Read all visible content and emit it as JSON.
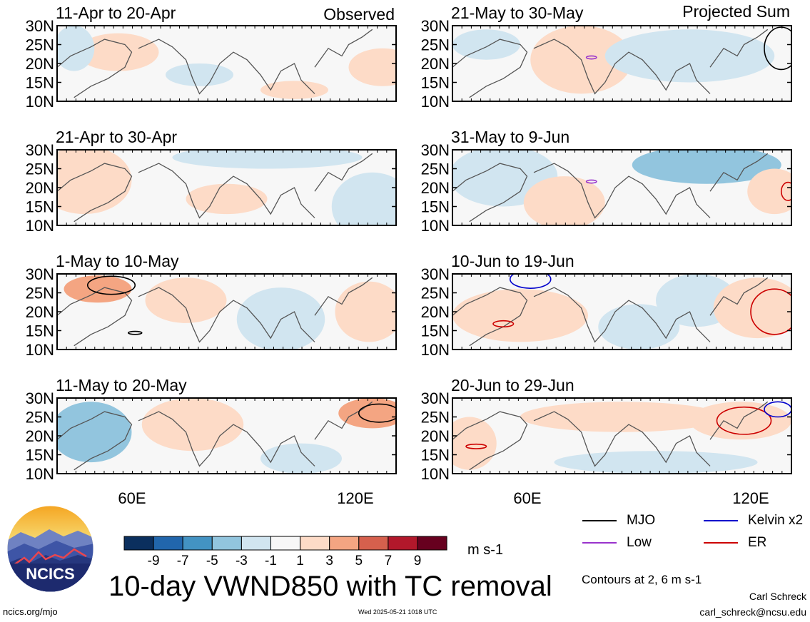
{
  "header": {
    "left_tag": "Observed",
    "right_tag": "Projected Sum"
  },
  "chart_data": {
    "type": "heatmap",
    "variable": "10-day VWND850 with TC removal",
    "units": "m s-1",
    "y_ticks": [
      "30N",
      "25N",
      "20N",
      "15N",
      "10N"
    ],
    "x_ticks": [
      "60E",
      "120E"
    ],
    "colorbar": {
      "labels": [
        "-9",
        "-7",
        "-5",
        "-3",
        "-1",
        "1",
        "3",
        "5",
        "7",
        "9"
      ],
      "colors": [
        "#0b2f5e",
        "#2166ac",
        "#4393c3",
        "#92c5de",
        "#d1e5f0",
        "#f7f7f7",
        "#fddbc7",
        "#f4a582",
        "#d6604d",
        "#b2182b",
        "#67001f"
      ]
    },
    "observed_panels": [
      {
        "title": "11-Apr to 20-Apr",
        "blobs": [
          {
            "x": 0.18,
            "y": 0.35,
            "rx": 0.12,
            "ry": 0.25,
            "c": "#fddbc7"
          },
          {
            "x": 0.42,
            "y": 0.65,
            "rx": 0.1,
            "ry": 0.15,
            "c": "#d1e5f0"
          },
          {
            "x": 0.7,
            "y": 0.85,
            "rx": 0.1,
            "ry": 0.12,
            "c": "#fddbc7"
          },
          {
            "x": 0.05,
            "y": 0.3,
            "rx": 0.06,
            "ry": 0.3,
            "c": "#d1e5f0"
          },
          {
            "x": 0.96,
            "y": 0.55,
            "rx": 0.1,
            "ry": 0.25,
            "c": "#fddbc7"
          }
        ],
        "contours": []
      },
      {
        "title": "21-Apr to 30-Apr",
        "blobs": [
          {
            "x": 0.08,
            "y": 0.4,
            "rx": 0.14,
            "ry": 0.45,
            "c": "#fddbc7"
          },
          {
            "x": 0.93,
            "y": 0.75,
            "rx": 0.12,
            "ry": 0.45,
            "c": "#d1e5f0"
          },
          {
            "x": 0.5,
            "y": 0.65,
            "rx": 0.12,
            "ry": 0.2,
            "c": "#fddbc7"
          },
          {
            "x": 0.62,
            "y": 0.1,
            "rx": 0.28,
            "ry": 0.15,
            "c": "#d1e5f0"
          }
        ],
        "contours": []
      },
      {
        "title": "1-May to 10-May",
        "blobs": [
          {
            "x": 0.12,
            "y": 0.2,
            "rx": 0.1,
            "ry": 0.18,
            "c": "#f4a582"
          },
          {
            "x": 0.38,
            "y": 0.35,
            "rx": 0.12,
            "ry": 0.3,
            "c": "#fddbc7"
          },
          {
            "x": 0.66,
            "y": 0.6,
            "rx": 0.13,
            "ry": 0.42,
            "c": "#d1e5f0"
          },
          {
            "x": 0.92,
            "y": 0.5,
            "rx": 0.1,
            "ry": 0.4,
            "c": "#fddbc7"
          }
        ],
        "contours": [
          {
            "x": 0.16,
            "y": 0.15,
            "rx": 0.07,
            "ry": 0.12,
            "c": "#000000"
          },
          {
            "x": 0.23,
            "y": 0.78,
            "rx": 0.02,
            "ry": 0.02,
            "c": "#000000"
          }
        ]
      },
      {
        "title": "11-May to 20-May",
        "blobs": [
          {
            "x": 0.1,
            "y": 0.45,
            "rx": 0.12,
            "ry": 0.4,
            "c": "#92c5de"
          },
          {
            "x": 0.4,
            "y": 0.35,
            "rx": 0.15,
            "ry": 0.35,
            "c": "#fddbc7"
          },
          {
            "x": 0.72,
            "y": 0.8,
            "rx": 0.12,
            "ry": 0.2,
            "c": "#d1e5f0"
          },
          {
            "x": 0.93,
            "y": 0.2,
            "rx": 0.1,
            "ry": 0.2,
            "c": "#f4a582"
          }
        ],
        "contours": [
          {
            "x": 0.95,
            "y": 0.2,
            "rx": 0.06,
            "ry": 0.12,
            "c": "#000000"
          }
        ]
      }
    ],
    "projected_panels": [
      {
        "title": "21-May to 30-May",
        "blobs": [
          {
            "x": 0.38,
            "y": 0.45,
            "rx": 0.15,
            "ry": 0.45,
            "c": "#fddbc7"
          },
          {
            "x": 0.1,
            "y": 0.25,
            "rx": 0.1,
            "ry": 0.2,
            "c": "#d1e5f0"
          },
          {
            "x": 0.7,
            "y": 0.4,
            "rx": 0.25,
            "ry": 0.35,
            "c": "#d1e5f0"
          }
        ],
        "contours": [
          {
            "x": 0.97,
            "y": 0.3,
            "rx": 0.05,
            "ry": 0.28,
            "c": "#000000"
          },
          {
            "x": 0.41,
            "y": 0.42,
            "rx": 0.015,
            "ry": 0.02,
            "c": "#9933cc"
          }
        ]
      },
      {
        "title": "31-May to 9-Jun",
        "blobs": [
          {
            "x": 0.15,
            "y": 0.35,
            "rx": 0.16,
            "ry": 0.4,
            "c": "#d1e5f0"
          },
          {
            "x": 0.33,
            "y": 0.7,
            "rx": 0.12,
            "ry": 0.35,
            "c": "#fddbc7"
          },
          {
            "x": 0.75,
            "y": 0.2,
            "rx": 0.22,
            "ry": 0.25,
            "c": "#92c5de"
          },
          {
            "x": 0.95,
            "y": 0.55,
            "rx": 0.08,
            "ry": 0.3,
            "c": "#fddbc7"
          }
        ],
        "contours": [
          {
            "x": 0.41,
            "y": 0.42,
            "rx": 0.015,
            "ry": 0.02,
            "c": "#9933cc"
          },
          {
            "x": 0.99,
            "y": 0.55,
            "rx": 0.02,
            "ry": 0.12,
            "c": "#cc0000"
          }
        ]
      },
      {
        "title": "10-Jun to 19-Jun",
        "blobs": [
          {
            "x": 0.2,
            "y": 0.55,
            "rx": 0.2,
            "ry": 0.35,
            "c": "#fddbc7"
          },
          {
            "x": 0.55,
            "y": 0.7,
            "rx": 0.12,
            "ry": 0.3,
            "c": "#d1e5f0"
          },
          {
            "x": 0.72,
            "y": 0.35,
            "rx": 0.12,
            "ry": 0.35,
            "c": "#d1e5f0"
          },
          {
            "x": 0.9,
            "y": 0.45,
            "rx": 0.13,
            "ry": 0.4,
            "c": "#fddbc7"
          }
        ],
        "contours": [
          {
            "x": 0.23,
            "y": 0.07,
            "rx": 0.06,
            "ry": 0.12,
            "c": "#0000cc"
          },
          {
            "x": 0.15,
            "y": 0.66,
            "rx": 0.03,
            "ry": 0.04,
            "c": "#cc0000"
          },
          {
            "x": 0.95,
            "y": 0.5,
            "rx": 0.07,
            "ry": 0.3,
            "c": "#cc0000"
          }
        ]
      },
      {
        "title": "20-Jun to 29-Jun",
        "blobs": [
          {
            "x": 0.05,
            "y": 0.6,
            "rx": 0.08,
            "ry": 0.35,
            "c": "#fddbc7"
          },
          {
            "x": 0.5,
            "y": 0.25,
            "rx": 0.3,
            "ry": 0.2,
            "c": "#fddbc7"
          },
          {
            "x": 0.6,
            "y": 0.85,
            "rx": 0.3,
            "ry": 0.15,
            "c": "#d1e5f0"
          },
          {
            "x": 0.85,
            "y": 0.3,
            "rx": 0.15,
            "ry": 0.25,
            "c": "#fddbc7"
          }
        ],
        "contours": [
          {
            "x": 0.86,
            "y": 0.3,
            "rx": 0.08,
            "ry": 0.18,
            "c": "#cc0000"
          },
          {
            "x": 0.96,
            "y": 0.15,
            "rx": 0.04,
            "ry": 0.1,
            "c": "#0000cc"
          },
          {
            "x": 0.07,
            "y": 0.64,
            "rx": 0.03,
            "ry": 0.03,
            "c": "#cc0000"
          }
        ]
      }
    ]
  },
  "legend": {
    "items": [
      {
        "label": "MJO",
        "color": "#000000"
      },
      {
        "label": "Kelvin x2",
        "color": "#0000cc"
      },
      {
        "label": "Low",
        "color": "#9933cc"
      },
      {
        "label": "ER",
        "color": "#cc0000"
      }
    ],
    "contour_note": "Contours at 2, 6 m s-1"
  },
  "footer": {
    "title": "10-day VWND850 with TC removal",
    "units": "m s-1",
    "website": "ncics.org/mjo",
    "timestamp": "Wed 2025-05-21 1018 UTC",
    "author": "Carl Schreck",
    "email": "carl_schreck@ncsu.edu",
    "logo_text": "NCICS"
  }
}
